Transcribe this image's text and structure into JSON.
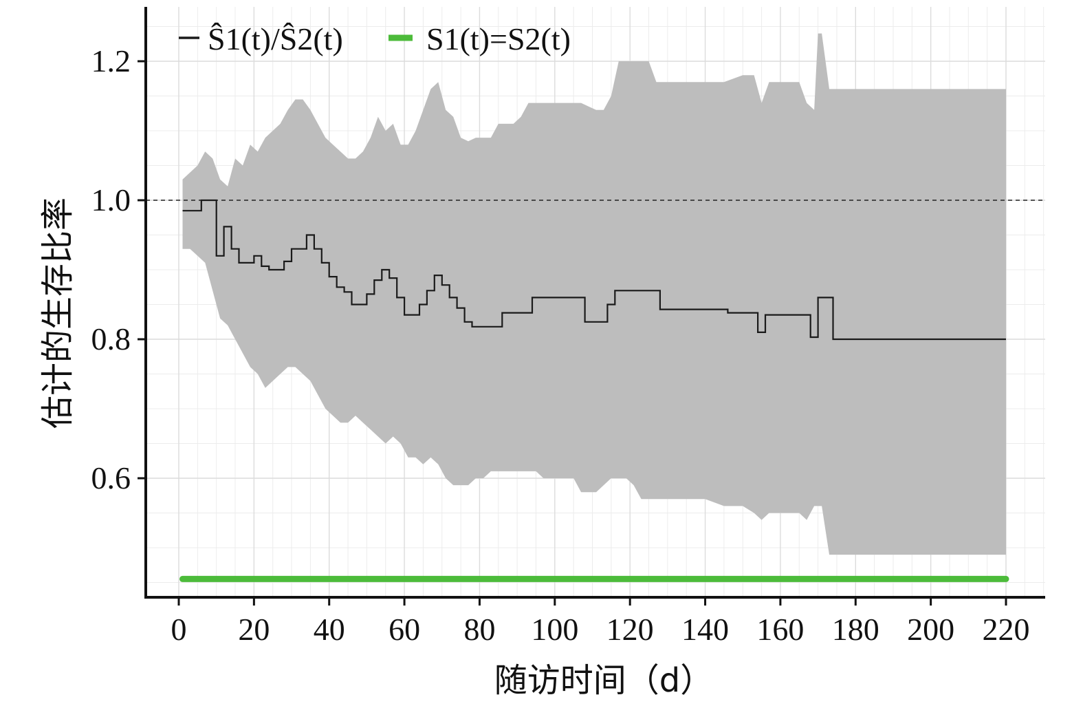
{
  "chart_data": {
    "type": "line",
    "xlabel": "随访时间（d）",
    "ylabel": "估计的生存比率",
    "xlim": [
      -5,
      230
    ],
    "ylim": [
      0.43,
      1.28
    ],
    "x_ticks": [
      0,
      20,
      40,
      60,
      80,
      100,
      120,
      140,
      160,
      180,
      200,
      220
    ],
    "x_tick_labels": [
      "0",
      "20",
      "40",
      "60",
      "80",
      "100",
      "120",
      "140",
      "160",
      "180",
      "200",
      "220"
    ],
    "y_ticks": [
      0.6,
      0.8,
      1.0,
      1.2
    ],
    "y_tick_labels": [
      "0.6",
      "0.8",
      "1.0",
      "1.2"
    ],
    "grid": true,
    "legend_position": "top-left",
    "legend": [
      {
        "label": "Ŝ1(t)/Ŝ2(t)",
        "color": "#1a1a1a"
      },
      {
        "label": "S1(t)=S2(t)",
        "color": "#4cbb3a"
      }
    ],
    "reference_line": {
      "y": 1.0,
      "style": "dashed"
    },
    "series": [
      {
        "name": "Ŝ1(t)/Ŝ2(t)",
        "type": "step",
        "color": "#1a1a1a",
        "x": [
          1,
          5,
          6,
          8,
          10,
          12,
          14,
          16,
          18,
          20,
          22,
          24,
          26,
          28,
          30,
          34,
          36,
          38,
          40,
          42,
          44,
          46,
          50,
          52,
          54,
          56,
          58,
          60,
          64,
          66,
          68,
          70,
          72,
          74,
          76,
          78,
          80,
          86,
          94,
          108,
          114,
          116,
          128,
          146,
          154,
          156,
          168,
          170,
          174,
          220
        ],
        "y": [
          0.985,
          0.985,
          1.0,
          1.0,
          0.92,
          0.962,
          0.93,
          0.91,
          0.91,
          0.92,
          0.905,
          0.9,
          0.9,
          0.912,
          0.93,
          0.95,
          0.93,
          0.91,
          0.89,
          0.875,
          0.868,
          0.85,
          0.865,
          0.885,
          0.9,
          0.888,
          0.86,
          0.835,
          0.85,
          0.87,
          0.892,
          0.878,
          0.86,
          0.845,
          0.825,
          0.818,
          0.818,
          0.838,
          0.86,
          0.825,
          0.85,
          0.87,
          0.843,
          0.838,
          0.81,
          0.835,
          0.803,
          0.86,
          0.8,
          0.8
        ]
      },
      {
        "name": "S1(t)=S2(t)",
        "type": "line",
        "color": "#4cbb3a",
        "x": [
          1,
          220
        ],
        "y": [
          0.455,
          0.455
        ]
      }
    ],
    "confidence_band": {
      "color": "#bdbdbd",
      "x": [
        1,
        3,
        5,
        7,
        9,
        11,
        13,
        15,
        17,
        19,
        21,
        23,
        25,
        27,
        29,
        31,
        33,
        35,
        37,
        39,
        41,
        43,
        45,
        47,
        49,
        51,
        53,
        55,
        57,
        59,
        61,
        63,
        65,
        67,
        69,
        71,
        73,
        75,
        77,
        79,
        81,
        83,
        85,
        87,
        89,
        91,
        93,
        95,
        97,
        99,
        101,
        103,
        105,
        107,
        109,
        111,
        113,
        115,
        117,
        119,
        121,
        123,
        125,
        127,
        130,
        135,
        140,
        145,
        150,
        153,
        155,
        157,
        160,
        163,
        165,
        167,
        169,
        170,
        171,
        173,
        175,
        180,
        190,
        200,
        210,
        220
      ],
      "upper": [
        1.03,
        1.04,
        1.05,
        1.07,
        1.06,
        1.03,
        1.02,
        1.06,
        1.05,
        1.08,
        1.07,
        1.09,
        1.1,
        1.11,
        1.13,
        1.145,
        1.145,
        1.13,
        1.11,
        1.09,
        1.08,
        1.07,
        1.06,
        1.06,
        1.07,
        1.09,
        1.12,
        1.1,
        1.11,
        1.08,
        1.08,
        1.1,
        1.13,
        1.16,
        1.17,
        1.13,
        1.12,
        1.09,
        1.085,
        1.09,
        1.09,
        1.09,
        1.11,
        1.11,
        1.11,
        1.12,
        1.14,
        1.14,
        1.14,
        1.14,
        1.14,
        1.14,
        1.14,
        1.14,
        1.135,
        1.13,
        1.13,
        1.15,
        1.2,
        1.2,
        1.2,
        1.2,
        1.2,
        1.17,
        1.17,
        1.17,
        1.17,
        1.17,
        1.18,
        1.18,
        1.14,
        1.17,
        1.17,
        1.17,
        1.17,
        1.14,
        1.13,
        1.24,
        1.24,
        1.16,
        1.16,
        1.16,
        1.16,
        1.16,
        1.16,
        1.16
      ],
      "lower": [
        0.93,
        0.93,
        0.92,
        0.91,
        0.87,
        0.83,
        0.82,
        0.8,
        0.78,
        0.76,
        0.75,
        0.73,
        0.74,
        0.75,
        0.76,
        0.76,
        0.75,
        0.74,
        0.72,
        0.7,
        0.69,
        0.68,
        0.68,
        0.69,
        0.68,
        0.67,
        0.66,
        0.65,
        0.66,
        0.65,
        0.63,
        0.63,
        0.62,
        0.63,
        0.62,
        0.6,
        0.59,
        0.59,
        0.59,
        0.6,
        0.6,
        0.61,
        0.61,
        0.61,
        0.61,
        0.61,
        0.61,
        0.61,
        0.6,
        0.6,
        0.6,
        0.6,
        0.6,
        0.58,
        0.58,
        0.58,
        0.59,
        0.6,
        0.6,
        0.6,
        0.59,
        0.57,
        0.57,
        0.57,
        0.57,
        0.57,
        0.57,
        0.56,
        0.56,
        0.55,
        0.54,
        0.55,
        0.55,
        0.55,
        0.55,
        0.54,
        0.56,
        0.56,
        0.56,
        0.49,
        0.49,
        0.49,
        0.49,
        0.49,
        0.49,
        0.49
      ]
    }
  }
}
